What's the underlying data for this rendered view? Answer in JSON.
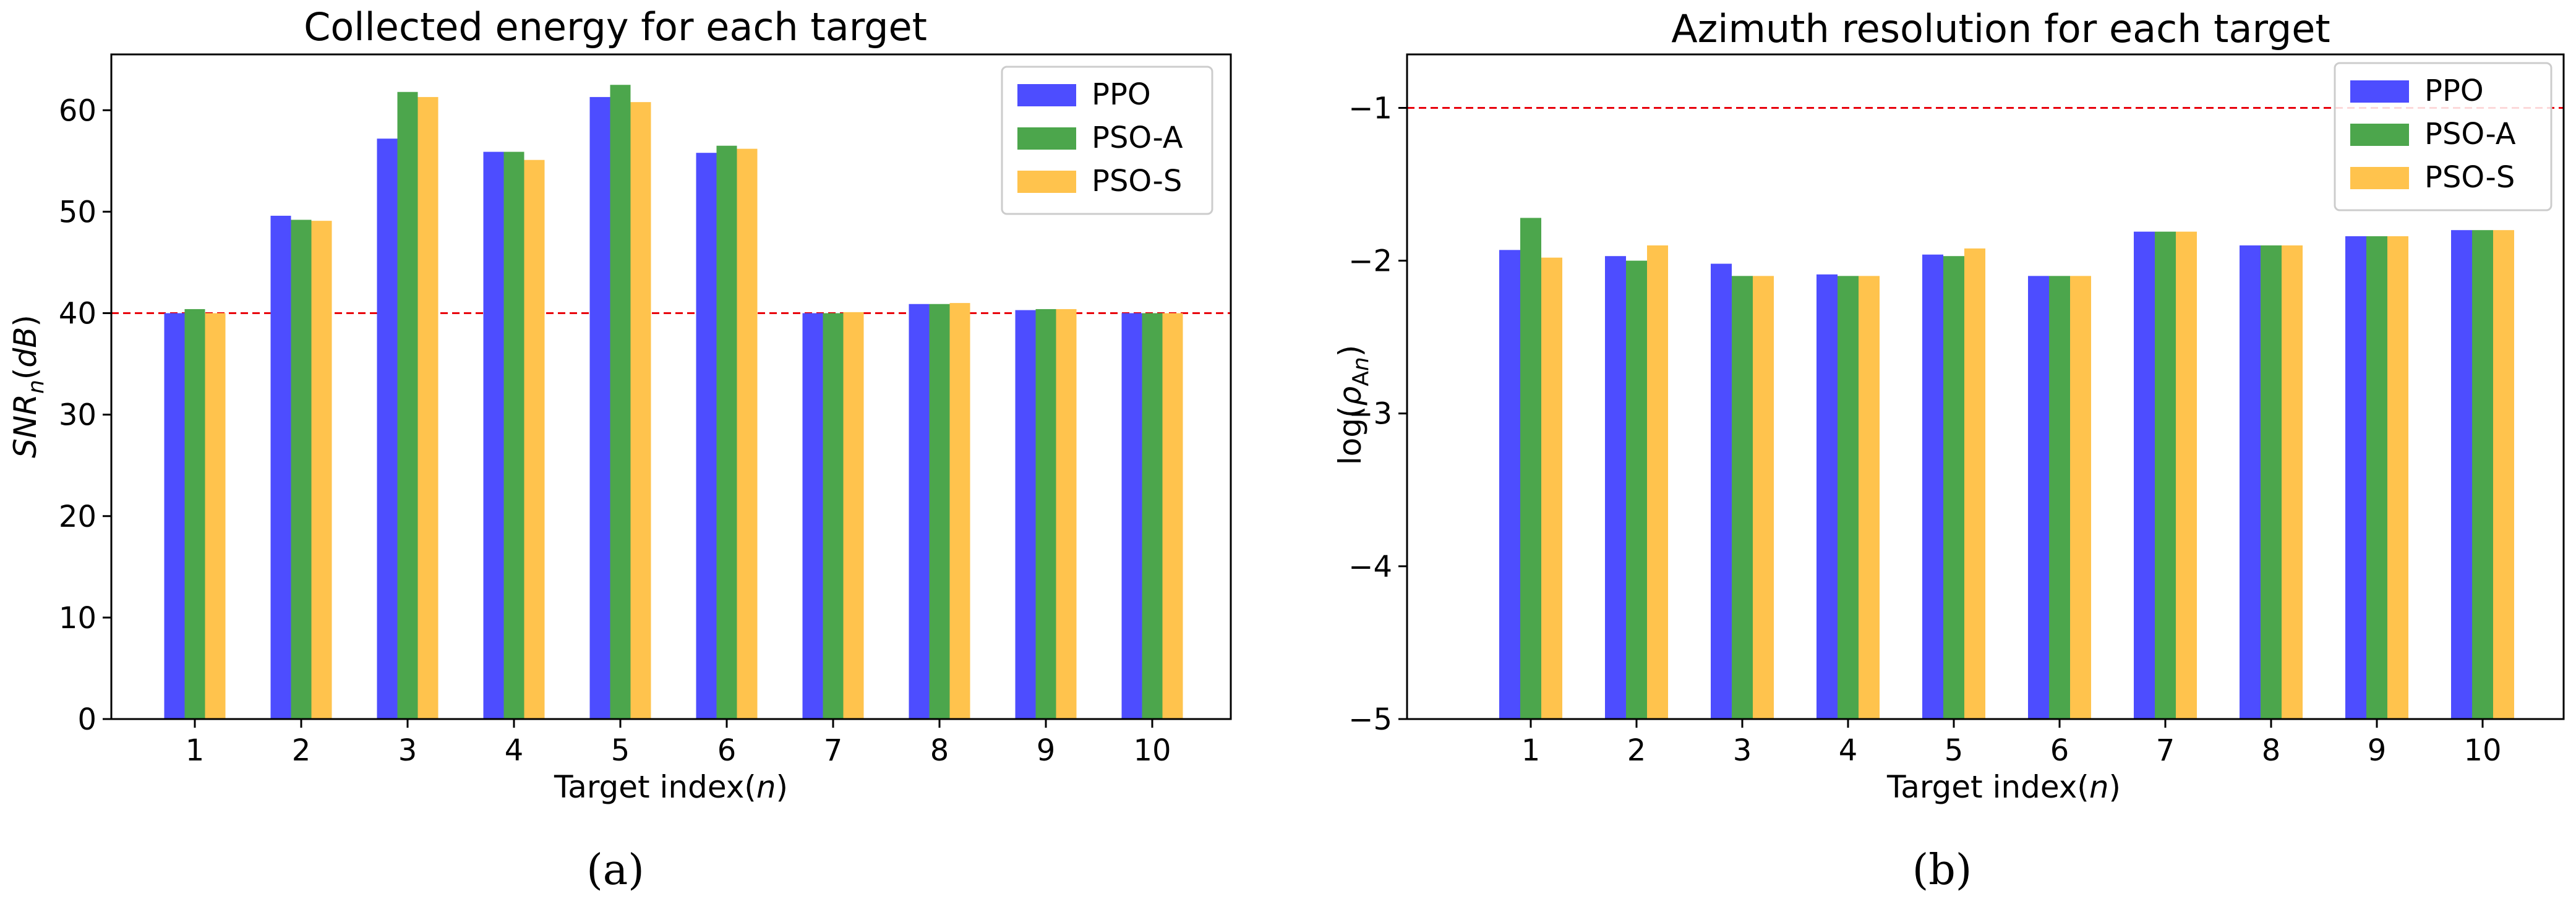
{
  "chart_data": [
    {
      "type": "bar",
      "title": "Collected energy for each target",
      "xlabel": "Target index(n)",
      "ylabel": "SNR_n(dB)",
      "panel_label": "(a)",
      "ylim": [
        0,
        65.5
      ],
      "yticks": [
        "0",
        "10",
        "20",
        "30",
        "40",
        "50",
        "60"
      ],
      "ytick_values": [
        0,
        10,
        20,
        30,
        40,
        50,
        60
      ],
      "categories": [
        "1",
        "2",
        "3",
        "4",
        "5",
        "6",
        "7",
        "8",
        "9",
        "10"
      ],
      "reference_line": {
        "value": 40,
        "color": "#e8000b"
      },
      "legend_position": "top-right",
      "series": [
        {
          "name": "PPO",
          "color": "#4d4dff",
          "values": [
            40.0,
            49.6,
            57.2,
            55.9,
            61.3,
            55.8,
            40.0,
            40.9,
            40.3,
            40.0
          ]
        },
        {
          "name": "PSO-A",
          "color": "#4ca64c",
          "values": [
            40.4,
            49.2,
            61.8,
            55.9,
            62.5,
            56.5,
            40.0,
            40.9,
            40.4,
            40.0
          ]
        },
        {
          "name": "PSO-S",
          "color": "#ffc34d",
          "values": [
            40.0,
            49.1,
            61.3,
            55.1,
            60.8,
            56.2,
            40.1,
            41.0,
            40.4,
            40.0
          ]
        }
      ]
    },
    {
      "type": "bar",
      "title": "Azimuth resolution for each target",
      "xlabel": "Target index(n)",
      "ylabel": "log(ρ_An)",
      "panel_label": "(b)",
      "ylim": [
        -5,
        -0.65
      ],
      "yticks": [
        "−5",
        "−4",
        "−3",
        "−2",
        "−1"
      ],
      "ytick_values": [
        -5,
        -4,
        -3,
        -2,
        -1
      ],
      "categories": [
        "1",
        "2",
        "3",
        "4",
        "5",
        "6",
        "7",
        "8",
        "9",
        "10"
      ],
      "reference_line": {
        "value": -1,
        "color": "#e8000b"
      },
      "legend_position": "top-right",
      "series": [
        {
          "name": "PPO",
          "color": "#4d4dff",
          "values": [
            -1.93,
            -1.97,
            -2.02,
            -2.09,
            -1.96,
            -2.1,
            -1.81,
            -1.9,
            -1.84,
            -1.8
          ]
        },
        {
          "name": "PSO-A",
          "color": "#4ca64c",
          "values": [
            -1.72,
            -2.0,
            -2.1,
            -2.1,
            -1.97,
            -2.1,
            -1.81,
            -1.9,
            -1.84,
            -1.8
          ]
        },
        {
          "name": "PSO-S",
          "color": "#ffc34d",
          "values": [
            -1.98,
            -1.9,
            -2.1,
            -2.1,
            -1.92,
            -2.1,
            -1.81,
            -1.9,
            -1.84,
            -1.8
          ]
        }
      ]
    }
  ]
}
